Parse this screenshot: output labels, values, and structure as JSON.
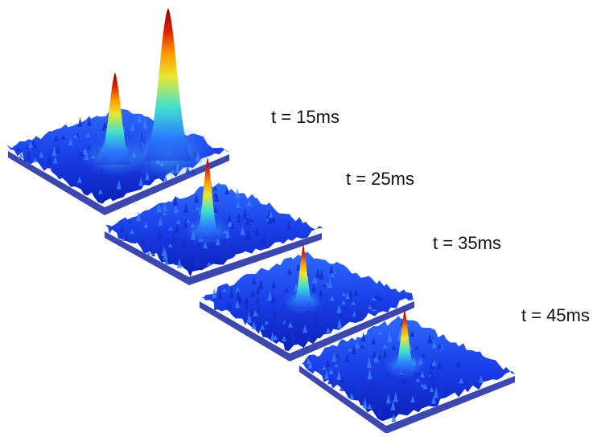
{
  "panels": [
    {
      "label": "t = 15ms"
    },
    {
      "label": "t = 25ms"
    },
    {
      "label": "t = 35ms"
    },
    {
      "label": "t = 45ms"
    }
  ]
}
